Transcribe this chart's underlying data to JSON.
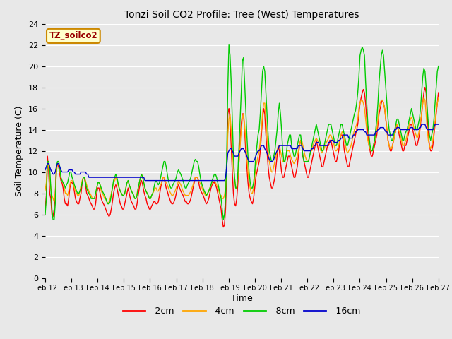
{
  "title": "Tonzi Soil CO2 Profile: Tree (West) Temperatures",
  "xlabel": "Time",
  "ylabel": "Soil Temperature (C)",
  "ylim": [
    0,
    24
  ],
  "yticks": [
    0,
    2,
    4,
    6,
    8,
    10,
    12,
    14,
    16,
    18,
    20,
    22,
    24
  ],
  "xlim": [
    0,
    360
  ],
  "xtick_labels": [
    "Feb 12",
    "Feb 13",
    "Feb 14",
    "Feb 15",
    "Feb 16",
    "Feb 17",
    "Feb 18",
    "Feb 19",
    "Feb 20",
    "Feb 21",
    "Feb 22",
    "Feb 23",
    "Feb 24",
    "Feb 25",
    "Feb 26",
    "Feb 27"
  ],
  "xtick_positions": [
    0,
    24,
    48,
    72,
    96,
    120,
    144,
    168,
    192,
    216,
    240,
    264,
    288,
    312,
    336,
    360
  ],
  "legend_labels": [
    "-2cm",
    "-4cm",
    "-8cm",
    "-16cm"
  ],
  "legend_colors": [
    "#ff0000",
    "#ffa500",
    "#00cc00",
    "#0000cc"
  ],
  "plot_bg": "#e8e8e8",
  "fig_bg": "#e8e8e8",
  "grid_color": "#ffffff",
  "annotation_text": "TZ_soilco2",
  "annotation_bg": "#ffffcc",
  "annotation_border": "#cc8800",
  "line_width": 1.0,
  "t_2cm": [
    6.5,
    7.8,
    11.5,
    10.2,
    8.0,
    7.5,
    6.0,
    5.8,
    6.5,
    8.0,
    10.5,
    10.8,
    10.5,
    9.8,
    9.2,
    9.0,
    8.5,
    7.5,
    7.0,
    7.0,
    6.8,
    7.5,
    8.5,
    9.0,
    9.0,
    8.8,
    8.2,
    7.5,
    7.2,
    7.0,
    7.0,
    7.5,
    8.0,
    9.0,
    9.5,
    9.5,
    8.8,
    8.0,
    7.8,
    7.5,
    7.2,
    7.0,
    6.8,
    6.5,
    6.5,
    7.0,
    8.0,
    8.5,
    8.5,
    8.0,
    7.5,
    7.2,
    7.0,
    6.8,
    6.5,
    6.2,
    6.0,
    5.8,
    6.0,
    6.5,
    7.2,
    8.0,
    8.5,
    8.8,
    8.5,
    8.0,
    7.5,
    7.0,
    6.8,
    6.5,
    6.5,
    7.0,
    7.5,
    8.0,
    8.5,
    8.0,
    7.5,
    7.2,
    7.0,
    6.8,
    6.5,
    6.5,
    7.0,
    7.8,
    8.5,
    9.0,
    9.2,
    8.8,
    8.2,
    7.8,
    7.5,
    7.0,
    6.8,
    6.5,
    6.5,
    6.8,
    7.0,
    7.2,
    7.2,
    7.0,
    7.0,
    7.2,
    7.8,
    8.5,
    9.0,
    9.5,
    9.5,
    9.0,
    8.5,
    8.2,
    7.8,
    7.5,
    7.2,
    7.0,
    7.0,
    7.2,
    7.5,
    8.0,
    8.5,
    8.8,
    8.5,
    8.2,
    8.0,
    7.8,
    7.5,
    7.2,
    7.2,
    7.0,
    7.0,
    7.2,
    7.5,
    8.0,
    8.5,
    9.0,
    9.5,
    9.5,
    9.5,
    9.0,
    8.5,
    8.2,
    8.0,
    7.8,
    7.5,
    7.2,
    7.0,
    7.2,
    7.5,
    8.0,
    8.5,
    8.8,
    9.0,
    9.0,
    8.8,
    8.5,
    8.0,
    7.5,
    7.0,
    6.5,
    5.5,
    4.8,
    5.0,
    6.5,
    10.0,
    15.5,
    16.0,
    15.0,
    12.5,
    10.0,
    8.0,
    7.0,
    6.8,
    7.5,
    9.0,
    11.0,
    13.0,
    14.5,
    15.5,
    15.5,
    14.0,
    12.0,
    10.5,
    9.0,
    8.0,
    7.5,
    7.2,
    7.0,
    7.5,
    8.5,
    9.5,
    10.0,
    10.5,
    11.0,
    12.0,
    13.5,
    15.0,
    16.0,
    15.5,
    13.5,
    12.0,
    10.5,
    9.5,
    9.0,
    8.5,
    8.5,
    9.0,
    9.5,
    10.5,
    11.5,
    12.5,
    12.0,
    11.0,
    10.0,
    9.5,
    9.5,
    10.0,
    10.5,
    11.0,
    11.5,
    11.5,
    11.0,
    10.5,
    10.0,
    9.5,
    9.5,
    10.0,
    10.5,
    11.5,
    12.5,
    13.0,
    12.5,
    11.5,
    11.0,
    10.5,
    10.0,
    9.5,
    9.5,
    10.0,
    10.5,
    11.0,
    11.5,
    12.0,
    12.5,
    13.0,
    12.5,
    12.0,
    11.5,
    11.0,
    10.5,
    10.5,
    11.0,
    11.5,
    12.0,
    12.5,
    12.5,
    13.0,
    13.0,
    12.5,
    12.0,
    11.5,
    11.0,
    11.0,
    11.5,
    12.0,
    13.0,
    13.5,
    13.5,
    13.0,
    12.0,
    11.5,
    11.0,
    10.5,
    10.5,
    11.0,
    11.5,
    12.0,
    12.5,
    13.0,
    13.5,
    14.0,
    14.5,
    15.5,
    16.5,
    17.0,
    17.5,
    17.8,
    17.5,
    16.5,
    15.0,
    13.5,
    12.5,
    12.0,
    11.5,
    11.5,
    12.0,
    12.5,
    13.0,
    13.5,
    14.5,
    15.5,
    16.0,
    16.5,
    16.8,
    16.5,
    16.0,
    15.0,
    14.0,
    13.0,
    12.5,
    12.0,
    12.0,
    12.5,
    13.0,
    13.5,
    14.0,
    14.5,
    14.0,
    13.5,
    13.0,
    12.5,
    12.0,
    12.0,
    12.5,
    12.5,
    13.0,
    13.5,
    14.0,
    14.5,
    14.5,
    14.0,
    13.5,
    13.0,
    12.5,
    12.5,
    13.0,
    13.5,
    14.5,
    15.5,
    16.5,
    17.5,
    18.0,
    17.5,
    15.5,
    13.5,
    12.5,
    12.0,
    12.0,
    12.5,
    13.5,
    14.5,
    15.5,
    16.5,
    17.5
  ],
  "t_4cm": [
    8.3,
    9.0,
    11.0,
    10.5,
    9.5,
    8.5,
    7.8,
    7.5,
    7.2,
    8.0,
    10.0,
    10.8,
    10.8,
    10.2,
    9.5,
    9.2,
    9.0,
    8.5,
    8.0,
    8.0,
    7.8,
    8.2,
    8.8,
    9.2,
    9.2,
    9.0,
    8.5,
    8.2,
    8.0,
    7.8,
    7.8,
    8.2,
    8.8,
    9.2,
    9.5,
    9.5,
    9.2,
    8.8,
    8.5,
    8.2,
    8.0,
    7.8,
    7.5,
    7.5,
    7.5,
    8.0,
    8.5,
    9.0,
    9.0,
    8.8,
    8.2,
    8.0,
    7.8,
    7.5,
    7.5,
    7.2,
    7.0,
    7.2,
    7.5,
    8.0,
    8.5,
    9.0,
    9.2,
    9.5,
    9.2,
    8.8,
    8.5,
    8.2,
    8.0,
    7.8,
    7.8,
    8.0,
    8.5,
    9.0,
    9.2,
    8.8,
    8.5,
    8.2,
    8.0,
    7.8,
    7.5,
    7.5,
    8.0,
    8.5,
    9.0,
    9.5,
    9.8,
    9.5,
    9.0,
    8.5,
    8.2,
    8.0,
    7.8,
    7.5,
    7.5,
    7.8,
    8.0,
    8.2,
    8.5,
    8.5,
    8.2,
    8.2,
    8.5,
    8.8,
    9.0,
    9.5,
    9.5,
    9.2,
    9.0,
    8.8,
    8.5,
    8.2,
    8.0,
    7.8,
    7.8,
    8.0,
    8.2,
    8.5,
    8.8,
    9.2,
    9.0,
    8.8,
    8.5,
    8.2,
    8.0,
    7.8,
    7.8,
    7.8,
    7.8,
    8.0,
    8.2,
    8.5,
    8.8,
    9.2,
    9.5,
    9.5,
    9.5,
    9.2,
    9.0,
    8.8,
    8.5,
    8.2,
    8.0,
    7.8,
    7.8,
    8.0,
    8.2,
    8.5,
    8.8,
    9.0,
    9.2,
    9.2,
    9.0,
    8.8,
    8.5,
    8.2,
    7.8,
    7.8,
    7.5,
    7.5,
    7.8,
    8.5,
    10.5,
    13.5,
    15.0,
    15.5,
    14.0,
    12.0,
    10.5,
    9.5,
    8.5,
    8.5,
    9.5,
    11.0,
    12.5,
    14.0,
    15.0,
    15.5,
    14.5,
    13.0,
    11.5,
    10.0,
    9.0,
    8.5,
    8.0,
    8.0,
    8.5,
    9.5,
    10.5,
    11.0,
    11.5,
    12.0,
    13.0,
    14.0,
    15.5,
    16.5,
    16.5,
    15.0,
    13.5,
    12.0,
    11.0,
    10.5,
    10.0,
    10.0,
    10.5,
    11.0,
    11.5,
    12.0,
    12.5,
    12.5,
    12.0,
    11.5,
    11.0,
    11.0,
    11.2,
    11.5,
    12.0,
    12.0,
    12.0,
    11.5,
    11.2,
    11.0,
    10.8,
    11.0,
    11.2,
    11.5,
    12.0,
    12.5,
    13.0,
    13.0,
    12.5,
    12.0,
    11.5,
    11.2,
    11.0,
    11.0,
    11.5,
    12.0,
    12.0,
    12.5,
    12.8,
    13.0,
    13.2,
    13.0,
    12.8,
    12.5,
    12.0,
    11.8,
    12.0,
    12.2,
    12.5,
    12.8,
    13.0,
    13.2,
    13.5,
    13.5,
    13.2,
    12.8,
    12.5,
    12.0,
    12.0,
    12.2,
    12.5,
    13.0,
    13.5,
    13.8,
    13.5,
    13.0,
    12.5,
    12.0,
    11.8,
    12.0,
    12.2,
    12.5,
    13.0,
    13.5,
    14.0,
    14.2,
    14.5,
    15.0,
    16.0,
    16.5,
    16.8,
    16.8,
    16.5,
    16.0,
    15.0,
    14.0,
    13.0,
    12.5,
    12.2,
    12.0,
    12.0,
    12.5,
    13.0,
    13.5,
    14.0,
    15.0,
    16.0,
    16.5,
    16.8,
    16.8,
    16.5,
    16.0,
    15.0,
    14.0,
    13.0,
    12.5,
    12.2,
    12.2,
    12.5,
    13.0,
    13.5,
    14.0,
    14.5,
    14.2,
    13.8,
    13.5,
    13.0,
    12.5,
    12.5,
    12.8,
    13.0,
    13.5,
    14.0,
    14.5,
    15.0,
    15.2,
    14.8,
    14.2,
    13.8,
    13.5,
    13.2,
    13.5,
    14.0,
    14.8,
    15.5,
    16.5,
    17.0,
    16.8,
    15.5,
    14.0,
    13.0,
    12.5,
    12.2,
    12.5,
    13.0,
    13.8,
    14.8,
    15.8,
    16.5,
    17.0
  ],
  "t_8cm": [
    6.0,
    7.5,
    11.0,
    11.0,
    10.5,
    8.5,
    6.5,
    5.5,
    5.5,
    7.0,
    10.5,
    11.0,
    11.0,
    10.5,
    9.5,
    9.2,
    9.0,
    8.8,
    8.5,
    8.8,
    9.0,
    9.5,
    10.0,
    10.0,
    9.5,
    9.2,
    8.8,
    8.5,
    8.2,
    8.0,
    8.0,
    8.2,
    8.5,
    9.0,
    9.5,
    9.5,
    9.0,
    8.5,
    8.2,
    8.0,
    7.8,
    7.5,
    7.5,
    7.5,
    7.5,
    8.0,
    8.5,
    9.0,
    9.0,
    8.8,
    8.5,
    8.2,
    8.0,
    7.8,
    7.5,
    7.2,
    7.0,
    7.0,
    7.2,
    7.8,
    8.5,
    9.2,
    9.5,
    9.8,
    9.5,
    9.0,
    8.5,
    8.2,
    8.0,
    7.8,
    7.8,
    8.0,
    8.5,
    9.0,
    9.2,
    8.8,
    8.5,
    8.2,
    8.0,
    7.8,
    7.5,
    7.5,
    7.8,
    8.5,
    9.0,
    9.5,
    9.8,
    9.5,
    9.0,
    8.5,
    8.2,
    8.0,
    7.8,
    7.5,
    7.5,
    7.8,
    8.0,
    8.5,
    9.0,
    9.2,
    9.0,
    8.8,
    9.0,
    9.5,
    10.0,
    10.5,
    11.0,
    11.0,
    10.5,
    9.8,
    9.2,
    8.8,
    8.5,
    8.5,
    8.8,
    9.0,
    9.2,
    9.5,
    10.0,
    10.2,
    10.0,
    9.8,
    9.5,
    9.2,
    8.8,
    8.5,
    8.5,
    8.8,
    9.0,
    9.2,
    9.5,
    10.0,
    10.5,
    11.0,
    11.2,
    11.0,
    11.0,
    10.5,
    9.8,
    9.2,
    8.8,
    8.5,
    8.2,
    8.0,
    7.8,
    8.0,
    8.2,
    8.5,
    8.8,
    9.2,
    9.5,
    9.8,
    9.8,
    9.5,
    9.0,
    8.5,
    8.0,
    7.5,
    6.5,
    5.5,
    6.0,
    7.5,
    11.5,
    18.0,
    22.0,
    21.0,
    18.5,
    15.0,
    11.5,
    9.5,
    8.5,
    8.5,
    10.0,
    12.5,
    15.0,
    17.5,
    20.5,
    20.8,
    18.5,
    16.0,
    13.5,
    11.5,
    10.0,
    9.0,
    8.5,
    8.5,
    9.0,
    10.0,
    11.5,
    12.5,
    13.5,
    14.0,
    15.5,
    17.5,
    19.5,
    20.0,
    19.5,
    17.5,
    15.5,
    13.5,
    12.0,
    11.5,
    11.0,
    11.0,
    11.5,
    12.0,
    13.0,
    14.0,
    15.5,
    16.5,
    15.5,
    14.0,
    12.0,
    11.0,
    11.0,
    11.5,
    12.5,
    13.0,
    13.5,
    13.5,
    12.5,
    12.0,
    11.5,
    11.5,
    12.0,
    12.5,
    13.0,
    13.5,
    13.5,
    12.5,
    11.5,
    11.0,
    11.0,
    11.0,
    11.0,
    11.0,
    11.5,
    12.0,
    12.5,
    13.0,
    13.5,
    14.0,
    14.5,
    14.0,
    13.5,
    13.0,
    12.5,
    12.0,
    12.0,
    12.5,
    13.0,
    13.5,
    14.0,
    14.5,
    14.5,
    14.5,
    14.0,
    13.5,
    13.0,
    12.5,
    12.5,
    13.0,
    13.5,
    14.0,
    14.5,
    14.5,
    14.0,
    13.5,
    13.0,
    12.5,
    12.5,
    13.0,
    13.5,
    14.0,
    14.5,
    15.0,
    15.5,
    15.8,
    16.5,
    17.5,
    19.0,
    21.0,
    21.5,
    21.8,
    21.5,
    21.0,
    18.5,
    16.5,
    14.5,
    13.5,
    12.5,
    12.0,
    12.0,
    12.5,
    13.0,
    14.0,
    15.0,
    16.5,
    18.5,
    19.8,
    21.0,
    21.5,
    21.0,
    19.5,
    18.0,
    16.5,
    15.0,
    14.0,
    13.5,
    13.0,
    13.0,
    13.5,
    14.0,
    14.5,
    15.0,
    15.0,
    14.5,
    14.0,
    13.5,
    13.0,
    13.0,
    13.5,
    13.8,
    14.0,
    14.5,
    15.0,
    15.5,
    16.0,
    15.5,
    15.0,
    14.5,
    14.0,
    14.0,
    14.5,
    15.0,
    16.0,
    17.5,
    19.0,
    19.8,
    19.5,
    18.0,
    16.0,
    14.5,
    13.5,
    13.0,
    13.5,
    14.0,
    15.0,
    16.5,
    18.0,
    19.5,
    20.0
  ],
  "t_16cm": [
    10.2,
    10.5,
    10.8,
    10.8,
    10.5,
    10.2,
    10.0,
    9.8,
    9.8,
    10.0,
    10.5,
    10.8,
    10.8,
    10.5,
    10.2,
    10.0,
    10.0,
    10.0,
    10.0,
    10.0,
    10.0,
    10.2,
    10.2,
    10.2,
    10.2,
    10.0,
    10.0,
    9.8,
    9.8,
    9.8,
    9.8,
    9.8,
    10.0,
    10.0,
    10.0,
    10.0,
    10.0,
    9.8,
    9.8,
    9.5,
    9.5,
    9.5,
    9.5,
    9.5,
    9.5,
    9.5,
    9.5,
    9.5,
    9.5,
    9.5,
    9.5,
    9.5,
    9.5,
    9.5,
    9.5,
    9.5,
    9.5,
    9.5,
    9.5,
    9.5,
    9.5,
    9.5,
    9.5,
    9.5,
    9.5,
    9.5,
    9.5,
    9.5,
    9.5,
    9.5,
    9.5,
    9.5,
    9.5,
    9.5,
    9.5,
    9.5,
    9.5,
    9.5,
    9.5,
    9.5,
    9.5,
    9.5,
    9.5,
    9.5,
    9.5,
    9.5,
    9.5,
    9.5,
    9.5,
    9.2,
    9.2,
    9.2,
    9.2,
    9.2,
    9.2,
    9.2,
    9.2,
    9.2,
    9.2,
    9.2,
    9.2,
    9.2,
    9.2,
    9.2,
    9.2,
    9.2,
    9.2,
    9.2,
    9.2,
    9.2,
    9.2,
    9.2,
    9.2,
    9.2,
    9.2,
    9.2,
    9.2,
    9.2,
    9.2,
    9.2,
    9.2,
    9.2,
    9.2,
    9.2,
    9.2,
    9.2,
    9.2,
    9.2,
    9.2,
    9.2,
    9.2,
    9.2,
    9.2,
    9.2,
    9.2,
    9.2,
    9.2,
    9.2,
    9.2,
    9.2,
    9.2,
    9.2,
    9.2,
    9.2,
    9.2,
    9.2,
    9.2,
    9.2,
    9.2,
    9.2,
    9.2,
    9.2,
    9.2,
    9.2,
    9.2,
    9.2,
    9.2,
    9.2,
    9.2,
    9.2,
    9.2,
    9.5,
    10.5,
    11.8,
    12.0,
    12.2,
    12.2,
    12.0,
    11.8,
    11.5,
    11.5,
    11.5,
    11.5,
    11.8,
    12.0,
    12.2,
    12.2,
    12.2,
    12.0,
    11.8,
    11.5,
    11.2,
    11.0,
    11.0,
    11.0,
    11.0,
    11.0,
    11.2,
    11.5,
    11.8,
    12.0,
    12.0,
    12.2,
    12.5,
    12.5,
    12.5,
    12.2,
    12.0,
    11.8,
    11.5,
    11.2,
    11.0,
    11.0,
    11.0,
    11.2,
    11.5,
    11.8,
    12.0,
    12.2,
    12.5,
    12.5,
    12.5,
    12.5,
    12.5,
    12.5,
    12.5,
    12.5,
    12.5,
    12.5,
    12.5,
    12.2,
    12.2,
    12.2,
    12.2,
    12.2,
    12.2,
    12.5,
    12.5,
    12.5,
    12.5,
    12.2,
    12.0,
    12.0,
    12.0,
    12.0,
    12.0,
    12.0,
    12.0,
    12.2,
    12.2,
    12.5,
    12.5,
    12.8,
    12.8,
    12.8,
    12.5,
    12.5,
    12.5,
    12.5,
    12.5,
    12.5,
    12.5,
    12.5,
    12.8,
    12.8,
    13.0,
    13.0,
    13.0,
    12.8,
    12.8,
    12.8,
    12.8,
    13.0,
    13.0,
    13.2,
    13.2,
    13.5,
    13.5,
    13.5,
    13.5,
    13.5,
    13.2,
    13.2,
    13.2,
    13.2,
    13.5,
    13.5,
    13.8,
    13.8,
    14.0,
    14.0,
    14.0,
    14.0,
    14.0,
    14.0,
    13.8,
    13.8,
    13.5,
    13.5,
    13.5,
    13.5,
    13.5,
    13.5,
    13.5,
    13.5,
    13.8,
    13.8,
    14.0,
    14.0,
    14.2,
    14.2,
    14.2,
    14.2,
    14.0,
    13.8,
    13.8,
    13.5,
    13.5,
    13.5,
    13.5,
    13.5,
    13.8,
    14.0,
    14.0,
    14.2,
    14.2,
    14.2,
    14.0,
    14.0,
    14.0,
    14.0,
    14.0,
    14.0,
    14.0,
    14.0,
    14.0,
    14.2,
    14.2,
    14.2,
    14.0,
    14.0,
    14.0,
    14.0,
    14.0,
    14.2,
    14.2,
    14.5,
    14.5,
    14.5,
    14.5,
    14.2,
    14.0,
    14.0,
    14.0,
    14.0,
    14.0,
    14.0,
    14.2,
    14.5,
    14.5,
    14.5,
    14.5
  ]
}
